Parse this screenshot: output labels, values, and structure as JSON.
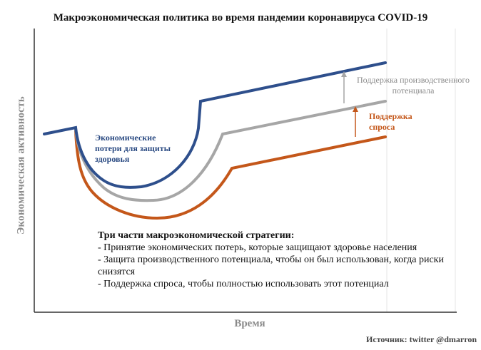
{
  "title": "Макроэкономическая политика во время пандемии коронавируса COVID-19",
  "axes": {
    "ylabel": "Экономическая активность",
    "xlabel": "Время"
  },
  "annotations": {
    "loss_line1": "Экономические",
    "loss_line2": "потери для защиты",
    "loss_line3": "здоровья",
    "capacity_line1": "Поддержка производственного",
    "capacity_line2": "потенциала",
    "demand_line1": "Поддержка",
    "demand_line2": "спроса"
  },
  "strategy": {
    "heading": "Три части макроэкономической стратегии:",
    "items": [
      "- Принятие экономических потерь, которые защищают здоровье населения",
      "- Защита производственного потенциала, чтобы он был использован, когда риски",
      "снизятся",
      "- Поддержка спроса, чтобы полностью использовать этот потенциал"
    ]
  },
  "source": "Источник: twitter @dmarron",
  "colors": {
    "blue": "#2e4f8c",
    "gray": "#a6a6a6",
    "orange": "#c4571a",
    "axis": "#333333",
    "grid": "#e6e6e6"
  }
}
